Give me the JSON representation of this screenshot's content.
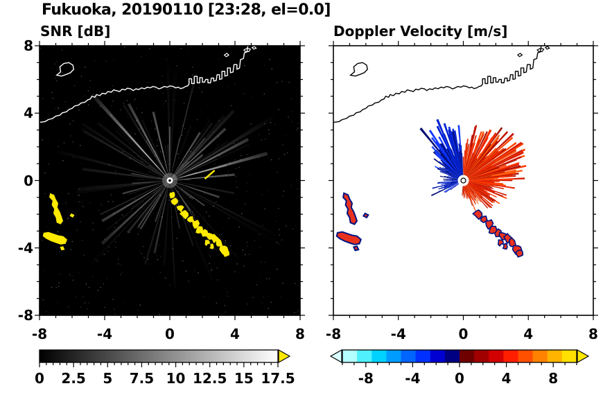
{
  "title": "Fukuoka, 20190110 [23:28, el=0.0]",
  "chart_data": {
    "type": "heatmap",
    "title": "Fukuoka, 20190110 [23:28, el=0.0]",
    "layout": {
      "panels_side_by_side": true,
      "grid": false,
      "legend": "colorbars-below"
    },
    "axes": {
      "xlim": [
        -8,
        8
      ],
      "ylim": [
        -8,
        8
      ],
      "xtick_values": [
        -8,
        -4,
        0,
        4,
        8
      ],
      "xtick_labels": [
        "-8",
        "-4",
        "0",
        "4",
        "8"
      ],
      "ytick_values": [
        8,
        4,
        0,
        -4,
        -8
      ],
      "ytick_labels": [
        "8",
        "4",
        "0",
        "-4",
        "-8"
      ],
      "minor_tick_step": 1,
      "major_tick_step": 4
    },
    "coastline": {
      "main": [
        [
          -8,
          3.45
        ],
        [
          -7.65,
          3.5
        ],
        [
          -7.45,
          3.62
        ],
        [
          -7.2,
          3.68
        ],
        [
          -7.0,
          3.82
        ],
        [
          -6.75,
          3.88
        ],
        [
          -6.6,
          4.02
        ],
        [
          -6.35,
          4.08
        ],
        [
          -6.18,
          4.22
        ],
        [
          -6.0,
          4.28
        ],
        [
          -5.85,
          4.42
        ],
        [
          -5.6,
          4.48
        ],
        [
          -5.45,
          4.6
        ],
        [
          -5.2,
          4.65
        ],
        [
          -5.05,
          4.78
        ],
        [
          -4.88,
          4.84
        ],
        [
          -4.78,
          5.0
        ],
        [
          -4.6,
          4.94
        ],
        [
          -4.5,
          5.1
        ],
        [
          -4.3,
          5.04
        ],
        [
          -4.15,
          5.18
        ],
        [
          -3.95,
          5.14
        ],
        [
          -3.8,
          5.28
        ],
        [
          -3.6,
          5.24
        ],
        [
          -3.45,
          5.38
        ],
        [
          -3.25,
          5.33
        ],
        [
          -3.08,
          5.28
        ],
        [
          -2.93,
          5.42
        ],
        [
          -2.75,
          5.38
        ],
        [
          -2.6,
          5.48
        ],
        [
          -2.4,
          5.44
        ],
        [
          -2.25,
          5.34
        ],
        [
          -2.08,
          5.44
        ],
        [
          -1.9,
          5.4
        ],
        [
          -1.74,
          5.5
        ],
        [
          -1.55,
          5.45
        ],
        [
          -1.38,
          5.54
        ],
        [
          -1.2,
          5.5
        ],
        [
          -1.04,
          5.58
        ],
        [
          -0.85,
          5.54
        ],
        [
          -0.68,
          5.44
        ],
        [
          -0.5,
          5.5
        ],
        [
          -0.34,
          5.58
        ],
        [
          -0.15,
          5.54
        ],
        [
          0.02,
          5.62
        ],
        [
          0.2,
          5.58
        ],
        [
          0.36,
          5.5
        ],
        [
          0.52,
          5.54
        ],
        [
          0.66,
          5.46
        ],
        [
          0.82,
          5.5
        ],
        [
          0.96,
          5.58
        ],
        [
          1.1,
          5.62
        ],
        [
          1.18,
          5.72
        ],
        [
          1.18,
          6.04
        ],
        [
          1.34,
          6.04
        ],
        [
          1.34,
          5.76
        ],
        [
          1.5,
          5.76
        ],
        [
          1.5,
          6.18
        ],
        [
          1.68,
          6.18
        ],
        [
          1.68,
          5.8
        ],
        [
          1.84,
          5.8
        ],
        [
          1.84,
          6.1
        ],
        [
          2.0,
          6.1
        ],
        [
          2.0,
          5.84
        ],
        [
          2.14,
          5.84
        ],
        [
          2.2,
          6.0
        ],
        [
          2.34,
          6.0
        ],
        [
          2.34,
          5.8
        ],
        [
          2.5,
          5.8
        ],
        [
          2.55,
          6.08
        ],
        [
          2.7,
          6.08
        ],
        [
          2.7,
          5.9
        ],
        [
          2.85,
          5.94
        ],
        [
          2.9,
          6.28
        ],
        [
          3.05,
          6.28
        ],
        [
          3.05,
          6.0
        ],
        [
          3.2,
          6.04
        ],
        [
          3.2,
          6.48
        ],
        [
          3.38,
          6.48
        ],
        [
          3.38,
          6.2
        ],
        [
          3.54,
          6.24
        ],
        [
          3.54,
          6.68
        ],
        [
          3.72,
          6.68
        ],
        [
          3.72,
          6.4
        ],
        [
          3.88,
          6.44
        ],
        [
          3.94,
          6.88
        ],
        [
          4.12,
          6.88
        ],
        [
          4.12,
          6.6
        ],
        [
          4.28,
          6.68
        ],
        [
          4.34,
          7.18
        ],
        [
          4.52,
          7.24
        ],
        [
          4.58,
          7.58
        ],
        [
          4.74,
          7.64
        ],
        [
          4.8,
          8.05
        ]
      ],
      "island": [
        [
          -6.95,
          6.25
        ],
        [
          -6.7,
          6.45
        ],
        [
          -6.75,
          6.75
        ],
        [
          -6.5,
          6.95
        ],
        [
          -6.2,
          7.0
        ],
        [
          -5.95,
          6.85
        ],
        [
          -5.9,
          6.6
        ],
        [
          -6.1,
          6.4
        ],
        [
          -6.35,
          6.3
        ],
        [
          -6.65,
          6.2
        ]
      ],
      "islets": [
        [
          [
            4.55,
            7.75
          ],
          [
            4.75,
            7.85
          ],
          [
            4.95,
            7.8
          ],
          [
            4.85,
            7.65
          ],
          [
            4.65,
            7.65
          ]
        ],
        [
          [
            5.05,
            7.9
          ],
          [
            5.2,
            7.95
          ],
          [
            5.3,
            7.85
          ],
          [
            5.15,
            7.8
          ]
        ],
        [
          [
            3.35,
            7.45
          ],
          [
            3.5,
            7.55
          ],
          [
            3.62,
            7.45
          ],
          [
            3.46,
            7.35
          ]
        ]
      ]
    },
    "panels": [
      {
        "id": "snr",
        "title": "SNR [dB]",
        "background": "#000000",
        "coast_color": "#ffffff",
        "colorbar": {
          "min": 0,
          "max": 17.5,
          "minor_step": 0.5,
          "major_step": 2.5,
          "tick_values": [
            0,
            2.5,
            5,
            7.5,
            10,
            12.5,
            15,
            17.5
          ],
          "tick_labels": [
            "0",
            "2.5",
            "5",
            "7.5",
            "10",
            "12.5",
            "15",
            "17.5"
          ],
          "gradient": [
            "#000000",
            "#ffffff"
          ],
          "over_arrow_color": "#ffe900"
        },
        "noise": {
          "seed": 3,
          "count": 430,
          "color": "#ffffff"
        },
        "rays": {
          "seed": 11,
          "count": 120,
          "max_length": 7.2,
          "color": "#ffffff"
        },
        "bright_rays": [
          [
            133,
            7.0,
            0.9
          ],
          [
            119,
            5.2,
            0.6
          ],
          [
            104,
            4.2,
            0.55
          ],
          [
            90,
            3.2,
            0.4
          ],
          [
            15,
            6.2,
            0.75
          ],
          [
            27,
            5.4,
            0.6
          ],
          [
            42,
            4.6,
            0.5
          ],
          [
            57,
            3.4,
            0.45
          ],
          [
            5,
            4.0,
            0.5
          ],
          [
            -18,
            3.2,
            0.4
          ],
          [
            -35,
            2.6,
            0.35
          ],
          [
            210,
            4.8,
            0.5
          ],
          [
            222,
            5.6,
            0.45
          ],
          [
            238,
            3.4,
            0.35
          ],
          [
            250,
            2.6,
            0.3
          ],
          [
            195,
            3.0,
            0.35
          ],
          [
            170,
            2.4,
            0.3
          ],
          [
            305,
            2.2,
            0.3
          ],
          [
            322,
            1.8,
            0.25
          ],
          [
            285,
            1.6,
            0.25
          ]
        ],
        "clutter": {
          "color": "#ffea00",
          "polygons": [
            [
              [
                -7.35,
                -0.75
              ],
              [
                -7.1,
                -0.85
              ],
              [
                -7.0,
                -1.1
              ],
              [
                -6.85,
                -1.35
              ],
              [
                -6.9,
                -1.6
              ],
              [
                -6.75,
                -1.85
              ],
              [
                -6.65,
                -2.1
              ],
              [
                -6.55,
                -2.4
              ],
              [
                -6.7,
                -2.6
              ],
              [
                -6.95,
                -2.5
              ],
              [
                -7.0,
                -2.2
              ],
              [
                -7.15,
                -1.95
              ],
              [
                -7.1,
                -1.7
              ],
              [
                -7.25,
                -1.45
              ],
              [
                -7.2,
                -1.2
              ],
              [
                -7.4,
                -1.0
              ]
            ],
            [
              [
                -7.75,
                -3.1
              ],
              [
                -7.45,
                -3.05
              ],
              [
                -7.15,
                -3.15
              ],
              [
                -6.85,
                -3.25
              ],
              [
                -6.55,
                -3.3
              ],
              [
                -6.3,
                -3.5
              ],
              [
                -6.4,
                -3.75
              ],
              [
                -6.7,
                -3.8
              ],
              [
                -7.0,
                -3.7
              ],
              [
                -7.3,
                -3.6
              ],
              [
                -7.6,
                -3.45
              ],
              [
                -7.8,
                -3.3
              ]
            ],
            [
              [
                -6.75,
                -3.95
              ],
              [
                -6.55,
                -3.9
              ],
              [
                -6.45,
                -4.1
              ],
              [
                -6.65,
                -4.15
              ]
            ],
            [
              [
                -6.05,
                -1.95
              ],
              [
                -5.85,
                -2.05
              ],
              [
                -5.95,
                -2.2
              ],
              [
                -6.15,
                -2.1
              ]
            ]
          ],
          "blobs": [
            [
              0.1,
              -0.85,
              0.2
            ],
            [
              0.35,
              -1.25,
              0.24
            ],
            [
              0.62,
              -1.65,
              0.22
            ],
            [
              0.9,
              -2.0,
              0.28
            ],
            [
              1.28,
              -2.3,
              0.26
            ],
            [
              1.58,
              -2.6,
              0.24
            ],
            [
              1.8,
              -2.95,
              0.28
            ],
            [
              2.1,
              -3.15,
              0.24
            ],
            [
              2.45,
              -3.3,
              0.28
            ],
            [
              2.78,
              -3.45,
              0.24
            ],
            [
              3.0,
              -3.72,
              0.28
            ],
            [
              3.28,
              -4.05,
              0.28
            ],
            [
              3.46,
              -4.3,
              0.2
            ],
            [
              2.3,
              -3.66,
              0.18
            ],
            [
              2.6,
              -3.92,
              0.16
            ]
          ],
          "dash": [
            [
              2.15,
              0.1
            ],
            [
              2.75,
              0.6
            ]
          ]
        }
      },
      {
        "id": "velocity",
        "title": "Doppler Velocity [m/s]",
        "background": "#ffffff",
        "coast_color": "#000000",
        "colorbar": {
          "min": -10,
          "max": 10,
          "minor_step": 1,
          "major_step": 4,
          "tick_values": [
            -8,
            -4,
            0,
            4,
            8
          ],
          "tick_labels": [
            "-8",
            "-4",
            "0",
            "4",
            "8"
          ],
          "segment_colors": [
            "#b4ffff",
            "#50f0ff",
            "#00d2ff",
            "#009cff",
            "#0064ff",
            "#0030ff",
            "#0000d2",
            "#000082",
            "#6e0000",
            "#a00000",
            "#d20000",
            "#ff1e00",
            "#ff5000",
            "#ff8200",
            "#ffb400",
            "#ffe000"
          ],
          "under_arrow_color": "#d8ffff",
          "over_arrow_color": "#ffe900"
        },
        "negative_fan": {
          "seed": 5,
          "count": 150,
          "angle_start": 93,
          "angle_end": 216,
          "halfwidth": 1.0,
          "sparse_above": 148,
          "sparse_skip": 0.38,
          "dense_skip": 0.04,
          "profile": [
            [
              93,
              2.4
            ],
            [
              105,
              2.8
            ],
            [
              115,
              3.0
            ],
            [
              125,
              2.8
            ],
            [
              135,
              2.3
            ],
            [
              145,
              1.9
            ],
            [
              155,
              1.5
            ],
            [
              165,
              1.1
            ],
            [
              175,
              1.2
            ],
            [
              185,
              1.4
            ],
            [
              195,
              1.6
            ],
            [
              205,
              1.3
            ],
            [
              216,
              0.9
            ]
          ],
          "colors": [
            "#0020d0",
            "#0016a0",
            "#1238ff",
            "#000d72",
            "#0a2cf0"
          ]
        },
        "positive_fan": {
          "seed": 9,
          "count": 280,
          "angle_start": -96,
          "angle_end": 90,
          "halfwidth": 0.8,
          "sparse_above": 999,
          "sparse_skip": 0,
          "dense_skip": 0.05,
          "profile": [
            [
              -96,
              0.7
            ],
            [
              -75,
              1.0
            ],
            [
              -60,
              1.3
            ],
            [
              -45,
              1.8
            ],
            [
              -30,
              2.1
            ],
            [
              -15,
              2.4
            ],
            [
              0,
              2.6
            ],
            [
              10,
              3.0
            ],
            [
              20,
              3.4
            ],
            [
              35,
              3.5
            ],
            [
              45,
              3.2
            ],
            [
              60,
              2.9
            ],
            [
              70,
              2.5
            ],
            [
              80,
              2.1
            ],
            [
              90,
              1.6
            ]
          ],
          "colors": [
            "#e82000",
            "#ff4300",
            "#c21300",
            "#ff5c10",
            "#a30d00",
            "#ff3800",
            "#d61a00"
          ]
        },
        "patches": {
          "fill": "#e8321e",
          "edge": "#001482",
          "chain_start_index": 3
        }
      }
    ]
  }
}
